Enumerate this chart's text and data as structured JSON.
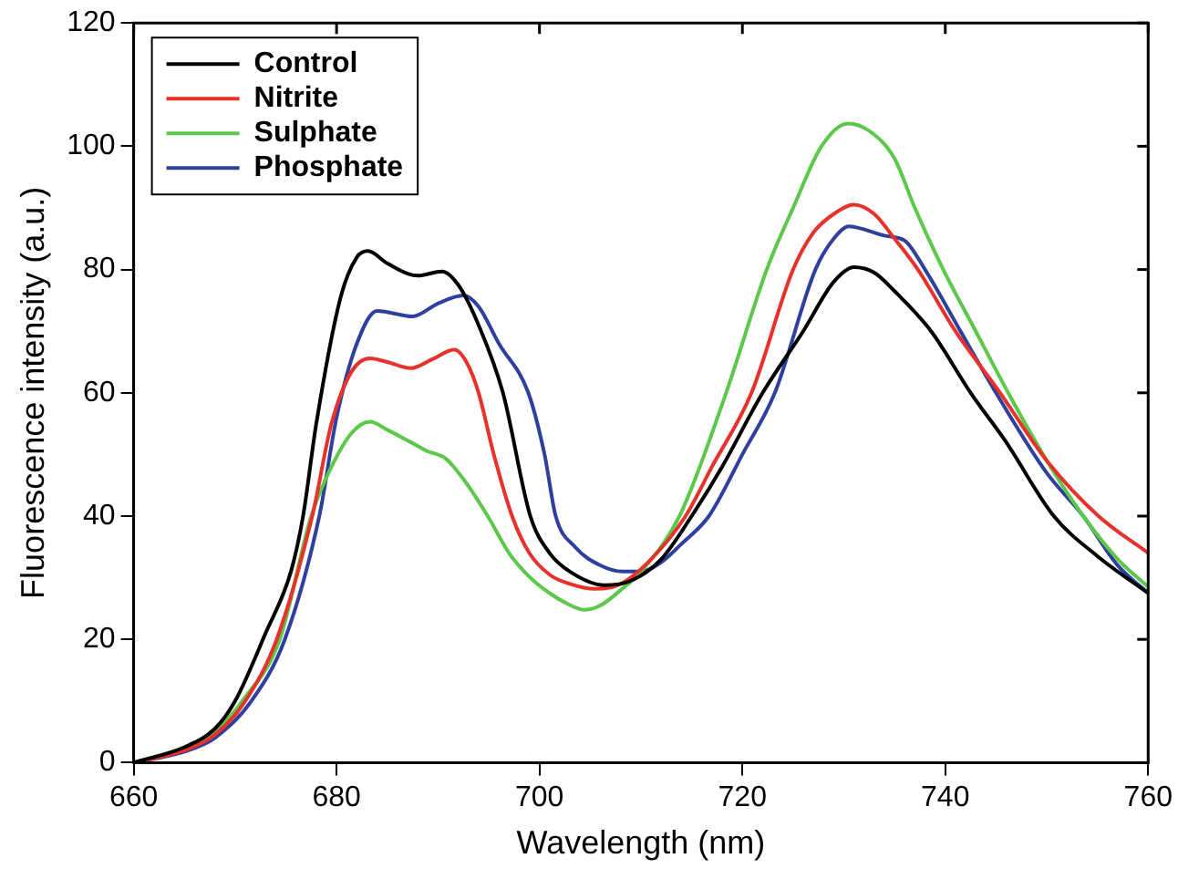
{
  "chart_data": {
    "type": "line",
    "xlabel": "Wavelength (nm)",
    "ylabel": "Fluorescence intensity (a.u.)",
    "xlim": [
      660,
      760
    ],
    "xticks": [
      660,
      680,
      700,
      720,
      740,
      760
    ],
    "ylim": [
      0,
      120
    ],
    "yticks": [
      0,
      20,
      40,
      60,
      80,
      100,
      120
    ],
    "grid": false,
    "legend": "top left",
    "marker": "none",
    "line_style": "solid",
    "series": [
      {
        "name": "Control",
        "color": "#000000",
        "x": [
          660,
          665,
          668,
          670,
          673,
          675.5,
          676.7,
          678,
          680.4,
          682,
          683.1,
          685,
          688,
          690.4,
          692,
          694,
          696.4,
          699.1,
          701,
          703,
          706.4,
          709,
          712,
          715,
          718,
          722,
          726,
          729,
          731,
          733,
          735,
          738.6,
          742.5,
          746,
          750.7,
          755,
          760
        ],
        "values": [
          0,
          2.5,
          5.5,
          10,
          21,
          31,
          40,
          55,
          75.5,
          82,
          83,
          81,
          79,
          79.7,
          77.5,
          71,
          60,
          40,
          34,
          31,
          28.8,
          29.5,
          33,
          40,
          48,
          60,
          70,
          78,
          80.4,
          79.5,
          76.5,
          70,
          60,
          52,
          40,
          33.5,
          27.5
        ]
      },
      {
        "name": "Nitrite",
        "color": "#e8312a",
        "x": [
          660,
          665,
          668,
          671,
          674.1,
          677.6,
          679.5,
          681.5,
          683.3,
          685,
          687.3,
          689.5,
          691.6,
          692.8,
          694,
          695.5,
          697.3,
          699,
          701,
          703,
          705.5,
          708,
          711,
          714.4,
          717,
          720.9,
          725,
          727,
          729,
          731,
          733,
          735,
          737.3,
          741,
          745.4,
          750,
          755.1,
          760
        ],
        "values": [
          0,
          2,
          4.5,
          10,
          20,
          40,
          55,
          63.5,
          65.6,
          65,
          64,
          65.5,
          67,
          65,
          60,
          50,
          40,
          34,
          30.5,
          29,
          28.2,
          29,
          33,
          40,
          48,
          60,
          80,
          86,
          89,
          90.5,
          89,
          85,
          80,
          70,
          60,
          49,
          40,
          34
        ]
      },
      {
        "name": "Sulphate",
        "color": "#5bc84a",
        "x": [
          660,
          665,
          668,
          670.7,
          674.4,
          677.5,
          679.5,
          681.5,
          683.3,
          685,
          687.3,
          689,
          690.7,
          692.5,
          694.9,
          697,
          699.1,
          701,
          702.5,
          704.4,
          706,
          708,
          710,
          713.8,
          718.4,
          722.4,
          725,
          727.8,
          730.4,
          732.5,
          735,
          737,
          739.8,
          743,
          746.2,
          750,
          753.6,
          757,
          760
        ],
        "values": [
          0,
          2.5,
          5,
          10,
          20,
          40,
          48,
          53.5,
          55.3,
          54,
          52,
          50.5,
          49.4,
          46,
          40,
          34,
          30,
          27.5,
          26,
          24.8,
          25.5,
          28,
          31,
          40,
          60,
          80,
          90,
          100,
          103.7,
          102.5,
          98,
          90,
          80,
          70,
          60,
          49,
          40,
          33,
          28.5
        ]
      },
      {
        "name": "Phosphate",
        "color": "#2e3f9e",
        "x": [
          660,
          665,
          668,
          671.6,
          674.9,
          678.3,
          680,
          682,
          684,
          687.5,
          690,
          692.5,
          694,
          696,
          698.9,
          700.5,
          701.6,
          703.5,
          706,
          708.2,
          710,
          712,
          714,
          716.7,
          720,
          723.2,
          727.2,
          729,
          730.5,
          732,
          734,
          736,
          738,
          741.5,
          745,
          750,
          753.6,
          757,
          760
        ],
        "values": [
          0,
          1.8,
          4,
          10,
          20,
          40,
          56,
          68,
          73.3,
          72.4,
          74.5,
          75.8,
          74,
          68,
          60,
          50,
          40,
          35,
          32,
          31,
          31,
          32.5,
          35.5,
          40,
          50,
          60,
          80,
          85,
          87,
          86.5,
          85.5,
          84.7,
          80,
          70,
          60,
          47,
          40,
          32,
          27.5
        ]
      }
    ]
  }
}
